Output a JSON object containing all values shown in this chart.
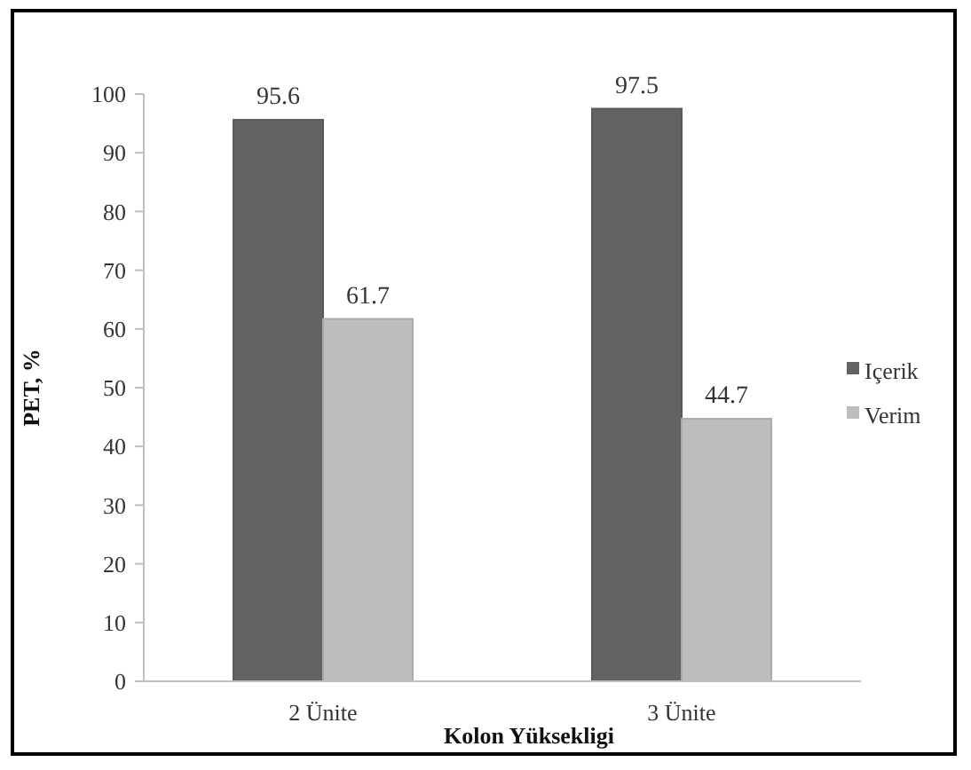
{
  "chart_data": {
    "type": "bar",
    "xlabel": "Kolon Yüksekligi",
    "ylabel": "PET, %",
    "categories": [
      "2 Ünite",
      "3 Ünite"
    ],
    "series": [
      {
        "name": "Içerik",
        "color": "#636363",
        "values": [
          95.6,
          97.5
        ]
      },
      {
        "name": "Verim",
        "color": "#bdbdbd",
        "values": [
          61.7,
          44.7
        ]
      }
    ],
    "ylim": [
      0,
      100
    ],
    "yticks": [
      0,
      10,
      20,
      30,
      40,
      50,
      60,
      70,
      80,
      90,
      100
    ],
    "data_labels": true,
    "legend": "right",
    "grid": false
  }
}
